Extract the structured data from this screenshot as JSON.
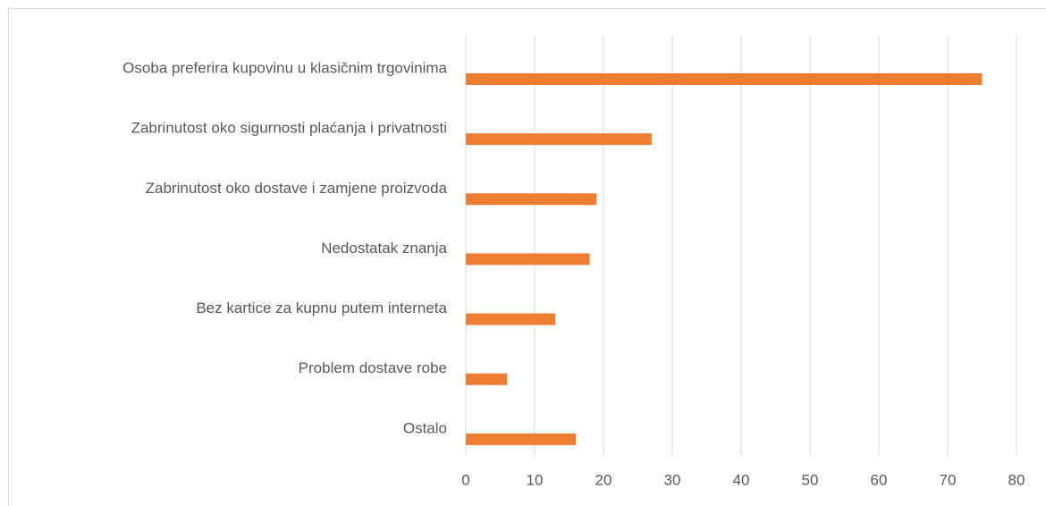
{
  "chart_data": {
    "type": "barh",
    "categories": [
      "Osoba preferira kupovinu u klasičnim trgovinima",
      "Zabrinutost oko sigurnosti plaćanja i privatnosti",
      "Zabrinutost oko dostave i zamjene proizvoda",
      "Nedostatak znanja",
      "Bez kartice za kupnu putem interneta",
      "Problem dostave robe",
      "Ostalo"
    ],
    "values": [
      75,
      27,
      19,
      18,
      13,
      6,
      16
    ],
    "color": "#ed7d31",
    "xlim": [
      0,
      80
    ],
    "xticks": [
      0,
      10,
      20,
      30,
      40,
      50,
      60,
      70,
      80
    ],
    "grid": true
  }
}
